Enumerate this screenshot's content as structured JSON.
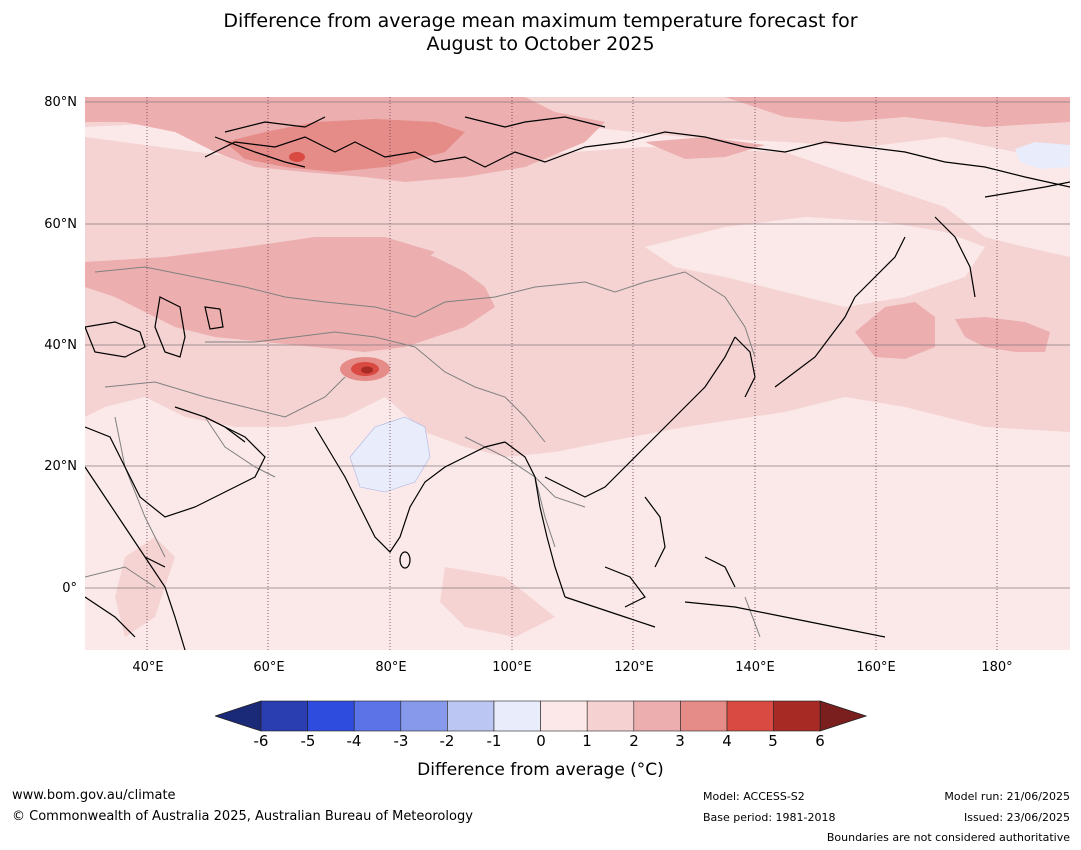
{
  "title_line1": "Difference from average mean maximum temperature forecast for",
  "title_line2": "August to October 2025",
  "lat_labels": [
    "80°N",
    "60°N",
    "40°N",
    "20°N",
    "0°"
  ],
  "lon_labels": [
    "40°E",
    "60°E",
    "80°E",
    "100°E",
    "120°E",
    "140°E",
    "160°E",
    "180°"
  ],
  "colorbar": {
    "ticks": [
      "-6",
      "-5",
      "-4",
      "-3",
      "-2",
      "-1",
      "0",
      "1",
      "2",
      "3",
      "4",
      "5",
      "6"
    ],
    "colors": [
      "#1b2a78",
      "#2a3db1",
      "#2e4ddf",
      "#5b73e6",
      "#8799ea",
      "#bcc6f2",
      "#e8ecfb",
      "#fce8e8",
      "#f5d1d1",
      "#ecaeae",
      "#e58c88",
      "#d94a43",
      "#a82a25",
      "#7a1e1e"
    ],
    "label": "Difference from average (°C)"
  },
  "map_colors": {
    "ocean_base": "#fbe9e9",
    "band_1_2": "#f5d3d2",
    "band_2_3": "#ecaeae",
    "band_3_4": "#e58c88",
    "band_4_5": "#d94a43",
    "band_neg": "#e8ecfb",
    "coast": "#000000",
    "border": "#808080",
    "grid": "#8a7a80"
  },
  "footer": {
    "url": "www.bom.gov.au/climate",
    "copyright": "© Commonwealth of Australia 2025, Australian Bureau of Meteorology",
    "model": "Model: ACCESS-S2",
    "base_period": "Base period: 1981-2018",
    "model_run": "Model run: 21/06/2025",
    "issued": "Issued: 23/06/2025",
    "disclaimer": "Boundaries are not considered authoritative"
  }
}
